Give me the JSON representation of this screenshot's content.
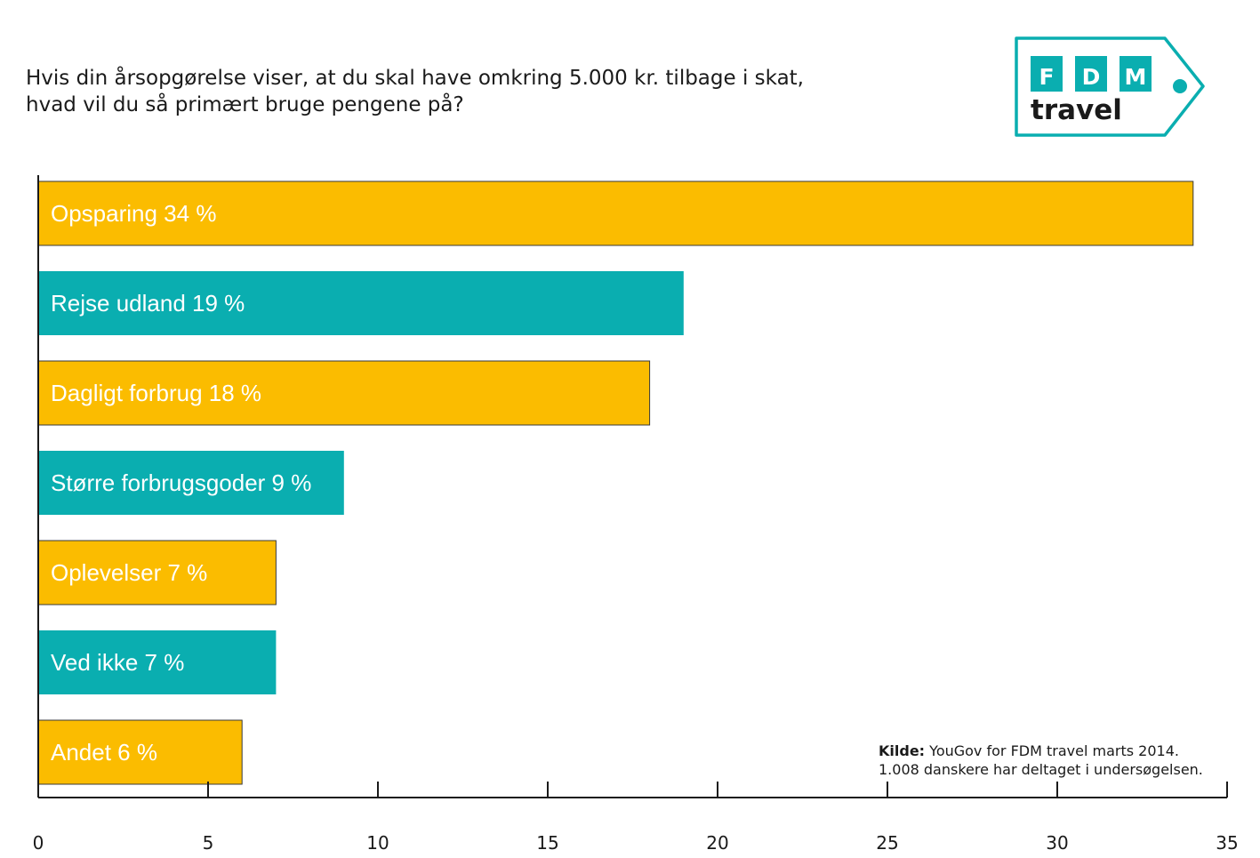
{
  "title": {
    "line1": "Hvis din årsopgørelse viser, at du skal have omkring 5.000 kr. tilbage i skat,",
    "line2": "hvad vil du så primært bruge pengene på?"
  },
  "logo": {
    "letters": [
      "F",
      "D",
      "M"
    ],
    "word": "travel",
    "color": "#0aaeb0"
  },
  "source": {
    "bold": "Kilde:",
    "line1": " YouGov for FDM travel marts 2014.",
    "line2": "1.008 danskere har deltaget i undersøgelsen."
  },
  "colors": {
    "orange": "#fbbc00",
    "teal": "#0aaeb0"
  },
  "chart_data": {
    "type": "bar",
    "orientation": "horizontal",
    "categories": [
      "Opsparing",
      "Rejse udland",
      "Dagligt forbrug",
      "Større forbrugsgoder",
      "Oplevelser",
      "Ved ikke",
      "Andet"
    ],
    "values": [
      34,
      19,
      18,
      9,
      7,
      7,
      6
    ],
    "bar_labels": [
      "Opsparing 34 %",
      "Rejse udland 19 %",
      "Dagligt forbrug 18 %",
      "Større forbrugsgoder 9 %",
      "Oplevelser 7 %",
      "Ved ikke 7 %",
      "Andet 6 %"
    ],
    "bar_colors": [
      "orange",
      "teal",
      "orange",
      "teal",
      "orange",
      "teal",
      "orange"
    ],
    "xlim": [
      0,
      35
    ],
    "xticks": [
      0,
      5,
      10,
      15,
      20,
      25,
      30,
      35
    ],
    "grid": false,
    "legend": "none"
  }
}
